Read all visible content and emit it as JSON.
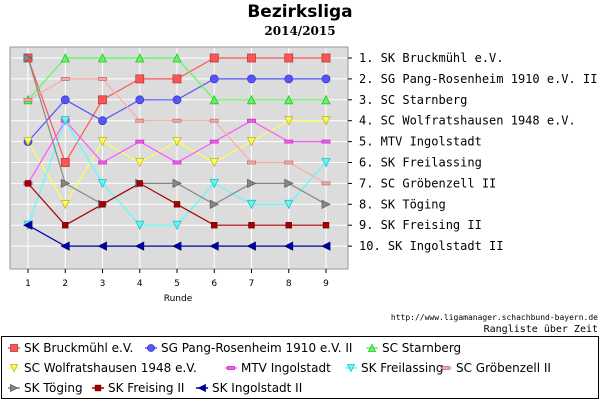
{
  "chart_data": {
    "type": "line",
    "title": "Bezirksliga",
    "subtitle": "2014/2015",
    "xlabel": "Runde",
    "x": [
      1,
      2,
      3,
      4,
      5,
      6,
      7,
      8,
      9
    ],
    "ylim": [
      1,
      10
    ],
    "y_inverted": true,
    "grid": true,
    "legend_position": "bottom",
    "rank_labels": [
      "1. SK Bruckmühl e.V.",
      "2. SG Pang-Rosenheim 1910 e.V. II",
      "3. SC Starnberg",
      "4. SC Wolfratshausen 1948 e.V.",
      "5. MTV Ingolstadt",
      "6. SK Freilassing",
      "7. SC Gröbenzell II",
      "8. SK Töging",
      "9. SK Freising II",
      "10. SK Ingolstadt II"
    ],
    "series": [
      {
        "name": "SK Bruckmühl e.V.",
        "color": "#ff5555",
        "marker": "square",
        "values": [
          1,
          6,
          3,
          2,
          2,
          1,
          1,
          1,
          1
        ]
      },
      {
        "name": "SG Pang-Rosenheim 1910 e.V. II",
        "color": "#5555ff",
        "marker": "circle",
        "values": [
          5,
          3,
          4,
          3,
          3,
          2,
          2,
          2,
          2
        ]
      },
      {
        "name": "SC Starnberg",
        "color": "#55ff55",
        "marker": "triangle-up",
        "values": [
          3,
          1,
          1,
          1,
          1,
          3,
          3,
          3,
          3
        ]
      },
      {
        "name": "SC Wolfratshausen 1948 e.V.",
        "color": "#ffff55",
        "marker": "triangle-down",
        "values": [
          5,
          8,
          5,
          6,
          5,
          6,
          5,
          4,
          4
        ]
      },
      {
        "name": "MTV Ingolstadt",
        "color": "#ff55ff",
        "marker": "dash",
        "values": [
          7,
          4,
          6,
          5,
          6,
          5,
          4,
          5,
          5
        ]
      },
      {
        "name": "SK Freilassing",
        "color": "#55ffff",
        "marker": "triangle-down",
        "values": [
          9,
          4,
          7,
          9,
          9,
          7,
          8,
          8,
          6
        ]
      },
      {
        "name": "SC Gröbenzell II",
        "color": "#ffaaaa",
        "marker": "dash",
        "values": [
          3,
          2,
          2,
          4,
          4,
          4,
          6,
          6,
          7
        ]
      },
      {
        "name": "SK Töging",
        "color": "#888888",
        "marker": "triangle-right",
        "values": [
          1,
          7,
          8,
          7,
          7,
          8,
          7,
          7,
          8
        ]
      },
      {
        "name": "SK Freising II",
        "color": "#aa0000",
        "marker": "small-square",
        "values": [
          7,
          9,
          8,
          7,
          8,
          9,
          9,
          9,
          9
        ]
      },
      {
        "name": "SK Ingolstadt II",
        "color": "#0000aa",
        "marker": "triangle-left",
        "values": [
          9,
          10,
          10,
          10,
          10,
          10,
          10,
          10,
          10
        ]
      }
    ]
  },
  "footer": {
    "source": "http://www.ligamanager.schachbund-bayern.de",
    "caption": "Rangliste über Zeit"
  }
}
